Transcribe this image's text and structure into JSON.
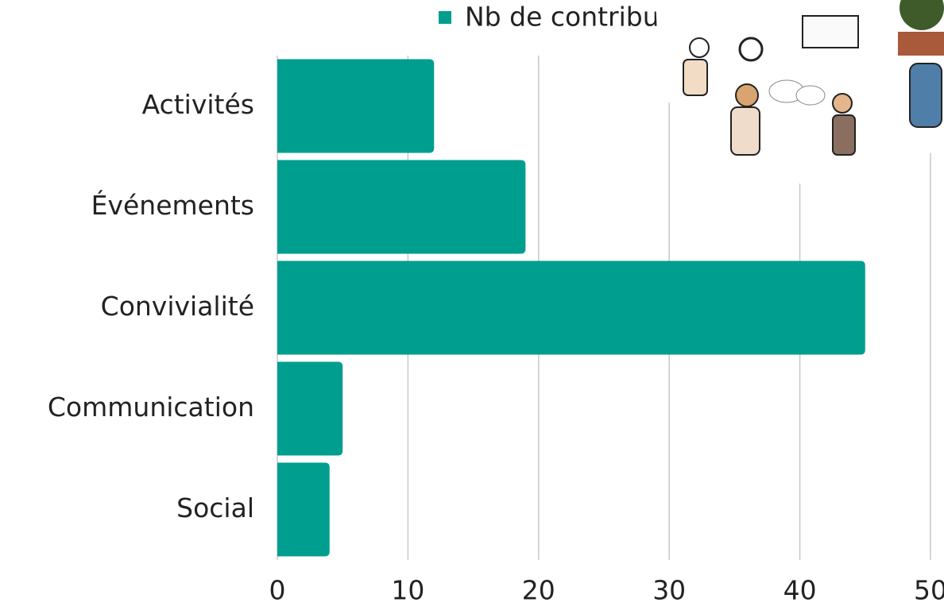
{
  "chart_data": {
    "type": "bar",
    "orientation": "horizontal",
    "categories": [
      "Activités",
      "Événements",
      "Convivialité",
      "Communication",
      "Social"
    ],
    "series": [
      {
        "name": "Nb de contributions",
        "color": "#009e8e",
        "values": [
          12,
          19,
          45,
          5,
          4
        ]
      }
    ],
    "xlim": [
      0,
      50
    ],
    "xticks": [
      0,
      10,
      20,
      30,
      40,
      50
    ],
    "grid": true,
    "legend": "top"
  }
}
